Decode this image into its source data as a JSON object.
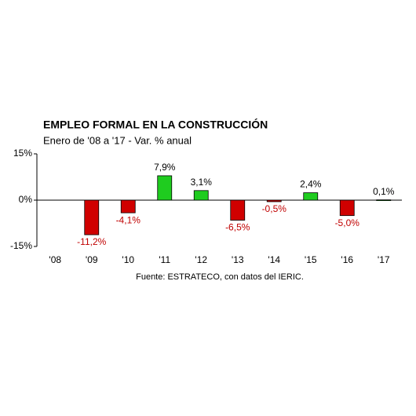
{
  "chart_data": {
    "type": "bar",
    "title": "EMPLEO FORMAL EN LA CONSTRUCCIÓN",
    "subtitle": "Enero de '08 a '17 - Var. % anual",
    "source": "Fuente: ESTRATECO, con datos del IERIC.",
    "categories": [
      "'08",
      "'09",
      "'10",
      "'11",
      "'12",
      "'13",
      "'14",
      "'15",
      "'16",
      "'17"
    ],
    "values": [
      null,
      -11.2,
      -4.1,
      7.9,
      3.1,
      -6.5,
      -0.5,
      2.4,
      -5.0,
      0.1
    ],
    "value_labels": [
      null,
      "-11,2%",
      "-4,1%",
      "7,9%",
      "3,1%",
      "-6,5%",
      "-0,5%",
      "2,4%",
      "-5,0%",
      "0,1%"
    ],
    "positive_color": "#1fcc1f",
    "negative_color": "#d00000",
    "positive_label_color": "#000000",
    "negative_label_color": "#c00000",
    "ylim": [
      -15,
      15
    ],
    "yticks": [
      {
        "value": -15,
        "label": "-15%"
      },
      {
        "value": 0,
        "label": "0%"
      },
      {
        "value": 15,
        "label": "15%"
      }
    ]
  }
}
